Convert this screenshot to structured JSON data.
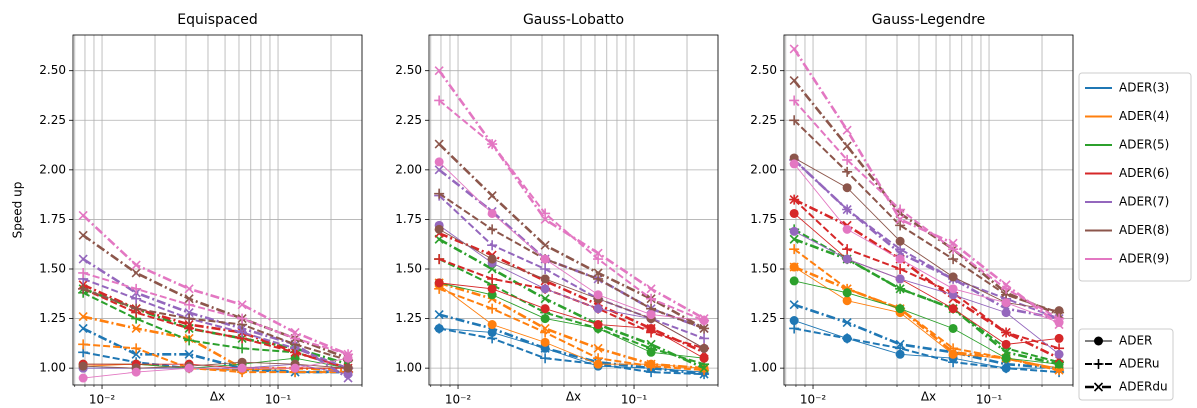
{
  "chart_data": [
    {
      "type": "line",
      "title": "Equispaced",
      "xlabel": "Δx",
      "ylabel": "Speed up",
      "log_x": true,
      "grid": true,
      "x": [
        0.0078125,
        0.015625,
        0.03125,
        0.0625,
        0.125,
        0.25
      ],
      "xlim": [
        0.00684,
        0.3
      ],
      "ylim": [
        0.915,
        2.68
      ],
      "xticks": [
        {
          "value": 0.01,
          "label": "10⁻²"
        },
        {
          "value": 0.1,
          "label": "10⁻¹"
        }
      ],
      "xminorticks": [
        0.007,
        0.008,
        0.009,
        0.02,
        0.03,
        0.04,
        0.05,
        0.06,
        0.07,
        0.08,
        0.09,
        0.2,
        0.3
      ],
      "yticks": [
        {
          "value": 1,
          "label": "1.00"
        },
        1.25,
        {
          "value": 1.5,
          "label": "1.50"
        },
        1.75,
        {
          "value": 2,
          "label": "2.00"
        },
        2.25,
        {
          "value": 2.5,
          "label": "2.50"
        }
      ],
      "series": [
        {
          "name": "ADER(3)",
          "style": "ADER",
          "values": [
            1.0,
            1.0,
            1.0,
            1.0,
            1.0,
            1.0
          ]
        },
        {
          "name": "ADER(3)",
          "style": "ADERu",
          "values": [
            1.08,
            1.03,
            1.0,
            0.99,
            0.98,
            0.98
          ]
        },
        {
          "name": "ADER(3)",
          "style": "ADERdu",
          "values": [
            1.2,
            1.07,
            1.07,
            1.0,
            0.98,
            0.98
          ]
        },
        {
          "name": "ADER(4)",
          "style": "ADER",
          "values": [
            1.01,
            1.02,
            1.0,
            0.99,
            1.0,
            1.0
          ]
        },
        {
          "name": "ADER(4)",
          "style": "ADERu",
          "values": [
            1.12,
            1.1,
            1.0,
            0.98,
            0.98,
            0.98
          ]
        },
        {
          "name": "ADER(4)",
          "style": "ADERdu",
          "values": [
            1.26,
            1.2,
            1.15,
            1.0,
            1.0,
            0.99
          ]
        },
        {
          "name": "ADER(5)",
          "style": "ADER",
          "values": [
            1.02,
            1.02,
            1.0,
            1.02,
            1.05,
            1.0
          ]
        },
        {
          "name": "ADER(5)",
          "style": "ADERu",
          "values": [
            1.38,
            1.25,
            1.14,
            1.1,
            1.08,
            1.0
          ]
        },
        {
          "name": "ADER(5)",
          "style": "ADERdu",
          "values": [
            1.4,
            1.3,
            1.2,
            1.15,
            1.1,
            1.02
          ]
        },
        {
          "name": "ADER(6)",
          "style": "ADER",
          "values": [
            1.02,
            1.02,
            1.02,
            1.0,
            1.0,
            1.0
          ]
        },
        {
          "name": "ADER(6)",
          "style": "ADERu",
          "values": [
            1.4,
            1.28,
            1.2,
            1.15,
            1.08,
            1.0
          ]
        },
        {
          "name": "ADER(6)",
          "style": "ADERdu",
          "values": [
            1.42,
            1.3,
            1.22,
            1.18,
            1.08,
            1.0
          ]
        },
        {
          "name": "ADER(7)",
          "style": "ADER",
          "values": [
            1.0,
            1.0,
            1.0,
            1.0,
            1.02,
            0.97
          ]
        },
        {
          "name": "ADER(7)",
          "style": "ADERu",
          "values": [
            1.45,
            1.35,
            1.25,
            1.18,
            1.1,
            1.0
          ]
        },
        {
          "name": "ADER(7)",
          "style": "ADERdu",
          "values": [
            1.55,
            1.38,
            1.28,
            1.2,
            1.12,
            0.95
          ]
        },
        {
          "name": "ADER(8)",
          "style": "ADER",
          "values": [
            1.01,
            1.0,
            1.01,
            1.03,
            1.02,
            1.0
          ]
        },
        {
          "name": "ADER(8)",
          "style": "ADERu",
          "values": [
            1.4,
            1.3,
            1.25,
            1.22,
            1.12,
            1.04
          ]
        },
        {
          "name": "ADER(8)",
          "style": "ADERdu",
          "values": [
            1.67,
            1.48,
            1.35,
            1.25,
            1.15,
            1.05
          ]
        },
        {
          "name": "ADER(9)",
          "style": "ADER",
          "values": [
            0.95,
            0.98,
            1.0,
            1.0,
            1.0,
            1.05
          ]
        },
        {
          "name": "ADER(9)",
          "style": "ADERu",
          "values": [
            1.48,
            1.4,
            1.32,
            1.25,
            1.15,
            1.07
          ]
        },
        {
          "name": "ADER(9)",
          "style": "ADERdu",
          "values": [
            1.77,
            1.52,
            1.4,
            1.32,
            1.18,
            1.07
          ]
        }
      ]
    },
    {
      "type": "line",
      "title": "Gauss-Lobatto",
      "xlabel": "Δx",
      "log_x": true,
      "grid": true,
      "x": [
        0.0078125,
        0.015625,
        0.03125,
        0.0625,
        0.125,
        0.25
      ],
      "xlim": [
        0.00684,
        0.3
      ],
      "ylim": [
        0.915,
        2.68
      ],
      "xticks": [
        {
          "value": 0.01,
          "label": "10⁻²"
        },
        {
          "value": 0.1,
          "label": "10⁻¹"
        }
      ],
      "xminorticks": [
        0.007,
        0.008,
        0.009,
        0.02,
        0.03,
        0.04,
        0.05,
        0.06,
        0.07,
        0.08,
        0.09,
        0.2,
        0.3
      ],
      "yticks": [
        {
          "value": 1,
          "label": "1.00"
        },
        1.25,
        {
          "value": 1.5,
          "label": "1.50"
        },
        1.75,
        {
          "value": 2,
          "label": "2.00"
        },
        2.25,
        {
          "value": 2.5,
          "label": "2.50"
        }
      ],
      "series": [
        {
          "name": "ADER(3)",
          "style": "ADER",
          "values": [
            1.2,
            1.18,
            1.1,
            1.01,
            1.0,
            0.98
          ]
        },
        {
          "name": "ADER(3)",
          "style": "ADERu",
          "values": [
            1.2,
            1.15,
            1.05,
            1.02,
            0.98,
            0.97
          ]
        },
        {
          "name": "ADER(3)",
          "style": "ADERdu",
          "values": [
            1.27,
            1.2,
            1.1,
            1.03,
            1.0,
            0.97
          ]
        },
        {
          "name": "ADER(4)",
          "style": "ADER",
          "values": [
            1.42,
            1.22,
            1.13,
            1.02,
            1.02,
            1.0
          ]
        },
        {
          "name": "ADER(4)",
          "style": "ADERu",
          "values": [
            1.4,
            1.3,
            1.18,
            1.05,
            1.01,
            0.99
          ]
        },
        {
          "name": "ADER(4)",
          "style": "ADERdu",
          "values": [
            1.43,
            1.35,
            1.2,
            1.1,
            1.02,
            1.0
          ]
        },
        {
          "name": "ADER(5)",
          "style": "ADER",
          "values": [
            1.43,
            1.37,
            1.25,
            1.2,
            1.08,
            1.05
          ]
        },
        {
          "name": "ADER(5)",
          "style": "ADERu",
          "values": [
            1.55,
            1.42,
            1.28,
            1.2,
            1.1,
            1.02
          ]
        },
        {
          "name": "ADER(5)",
          "style": "ADERdu",
          "values": [
            1.65,
            1.5,
            1.35,
            1.22,
            1.12,
            1.0
          ]
        },
        {
          "name": "ADER(6)",
          "style": "ADER",
          "values": [
            1.43,
            1.4,
            1.3,
            1.22,
            1.2,
            1.05
          ]
        },
        {
          "name": "ADER(6)",
          "style": "ADERu",
          "values": [
            1.55,
            1.45,
            1.4,
            1.3,
            1.18,
            1.1
          ]
        },
        {
          "name": "ADER(6)",
          "style": "ADERdu",
          "values": [
            1.68,
            1.57,
            1.44,
            1.32,
            1.2,
            1.08
          ]
        },
        {
          "name": "ADER(7)",
          "style": "ADER",
          "values": [
            1.72,
            1.53,
            1.4,
            1.3,
            1.25,
            1.1
          ]
        },
        {
          "name": "ADER(7)",
          "style": "ADERu",
          "values": [
            1.87,
            1.62,
            1.5,
            1.35,
            1.25,
            1.15
          ]
        },
        {
          "name": "ADER(7)",
          "style": "ADERdu",
          "values": [
            2.0,
            1.79,
            1.55,
            1.45,
            1.3,
            1.2
          ]
        },
        {
          "name": "ADER(8)",
          "style": "ADER",
          "values": [
            1.7,
            1.55,
            1.45,
            1.35,
            1.25,
            1.1
          ]
        },
        {
          "name": "ADER(8)",
          "style": "ADERu",
          "values": [
            1.88,
            1.7,
            1.55,
            1.45,
            1.3,
            1.2
          ]
        },
        {
          "name": "ADER(8)",
          "style": "ADERdu",
          "values": [
            2.13,
            1.87,
            1.62,
            1.48,
            1.35,
            1.2
          ]
        },
        {
          "name": "ADER(9)",
          "style": "ADER",
          "values": [
            2.04,
            1.78,
            1.55,
            1.37,
            1.27,
            1.24
          ]
        },
        {
          "name": "ADER(9)",
          "style": "ADERu",
          "values": [
            2.35,
            2.13,
            1.78,
            1.55,
            1.35,
            1.24
          ]
        },
        {
          "name": "ADER(9)",
          "style": "ADERdu",
          "values": [
            2.5,
            2.13,
            1.75,
            1.58,
            1.4,
            1.25
          ]
        }
      ]
    },
    {
      "type": "line",
      "title": "Gauss-Legendre",
      "xlabel": "Δx",
      "log_x": true,
      "grid": true,
      "x": [
        0.0078125,
        0.015625,
        0.03125,
        0.0625,
        0.125,
        0.25
      ],
      "xlim": [
        0.00684,
        0.3
      ],
      "ylim": [
        0.915,
        2.68
      ],
      "xticks": [
        {
          "value": 0.01,
          "label": "10⁻²"
        },
        {
          "value": 0.1,
          "label": "10⁻¹"
        }
      ],
      "xminorticks": [
        0.007,
        0.008,
        0.009,
        0.02,
        0.03,
        0.04,
        0.05,
        0.06,
        0.07,
        0.08,
        0.09,
        0.2,
        0.3
      ],
      "yticks": [
        {
          "value": 1,
          "label": "1.00"
        },
        1.25,
        {
          "value": 1.5,
          "label": "1.50"
        },
        1.75,
        {
          "value": 2,
          "label": "2.00"
        },
        2.25,
        {
          "value": 2.5,
          "label": "2.50"
        }
      ],
      "series": [
        {
          "name": "ADER(3)",
          "style": "ADER",
          "values": [
            1.24,
            1.15,
            1.07,
            1.05,
            1.0,
            1.0
          ]
        },
        {
          "name": "ADER(3)",
          "style": "ADERu",
          "values": [
            1.2,
            1.15,
            1.1,
            1.03,
            1.0,
            0.98
          ]
        },
        {
          "name": "ADER(3)",
          "style": "ADERdu",
          "values": [
            1.32,
            1.23,
            1.12,
            1.08,
            1.02,
            1.0
          ]
        },
        {
          "name": "ADER(4)",
          "style": "ADER",
          "values": [
            1.51,
            1.34,
            1.28,
            1.07,
            1.05,
            1.0
          ]
        },
        {
          "name": "ADER(4)",
          "style": "ADERu",
          "values": [
            1.6,
            1.4,
            1.3,
            1.1,
            1.05,
            0.99
          ]
        },
        {
          "name": "ADER(4)",
          "style": "ADERdu",
          "values": [
            1.51,
            1.4,
            1.3,
            1.08,
            1.05,
            0.99
          ]
        },
        {
          "name": "ADER(5)",
          "style": "ADER",
          "values": [
            1.44,
            1.38,
            1.3,
            1.2,
            1.05,
            1.02
          ]
        },
        {
          "name": "ADER(5)",
          "style": "ADERu",
          "values": [
            1.7,
            1.55,
            1.4,
            1.3,
            1.1,
            1.03
          ]
        },
        {
          "name": "ADER(5)",
          "style": "ADERdu",
          "values": [
            1.65,
            1.55,
            1.4,
            1.3,
            1.08,
            1.02
          ]
        },
        {
          "name": "ADER(6)",
          "style": "ADER",
          "values": [
            1.78,
            1.55,
            1.45,
            1.3,
            1.12,
            1.15
          ]
        },
        {
          "name": "ADER(6)",
          "style": "ADERu",
          "values": [
            1.85,
            1.6,
            1.5,
            1.38,
            1.18,
            1.1
          ]
        },
        {
          "name": "ADER(6)",
          "style": "ADERdu",
          "values": [
            1.85,
            1.72,
            1.55,
            1.35,
            1.18,
            1.05
          ]
        },
        {
          "name": "ADER(7)",
          "style": "ADER",
          "values": [
            1.69,
            1.55,
            1.45,
            1.37,
            1.28,
            1.07
          ]
        },
        {
          "name": "ADER(7)",
          "style": "ADERu",
          "values": [
            2.05,
            1.8,
            1.6,
            1.45,
            1.35,
            1.25
          ]
        },
        {
          "name": "ADER(7)",
          "style": "ADERdu",
          "values": [
            2.05,
            1.8,
            1.58,
            1.45,
            1.3,
            1.25
          ]
        },
        {
          "name": "ADER(8)",
          "style": "ADER",
          "values": [
            2.06,
            1.91,
            1.64,
            1.46,
            1.33,
            1.29
          ]
        },
        {
          "name": "ADER(8)",
          "style": "ADERu",
          "values": [
            2.25,
            1.99,
            1.72,
            1.55,
            1.37,
            1.28
          ]
        },
        {
          "name": "ADER(8)",
          "style": "ADERdu",
          "values": [
            2.45,
            2.12,
            1.78,
            1.6,
            1.38,
            1.27
          ]
        },
        {
          "name": "ADER(9)",
          "style": "ADER",
          "values": [
            2.03,
            1.7,
            1.55,
            1.4,
            1.33,
            1.23
          ]
        },
        {
          "name": "ADER(9)",
          "style": "ADERu",
          "values": [
            2.35,
            2.05,
            1.8,
            1.6,
            1.4,
            1.25
          ]
        },
        {
          "name": "ADER(9)",
          "style": "ADERdu",
          "values": [
            2.61,
            2.2,
            1.75,
            1.63,
            1.42,
            1.22
          ]
        }
      ]
    }
  ],
  "legend": {
    "colors": [
      {
        "name": "ADER(3)",
        "color": "#1f77b4"
      },
      {
        "name": "ADER(4)",
        "color": "#ff7f0e"
      },
      {
        "name": "ADER(5)",
        "color": "#2ca02c"
      },
      {
        "name": "ADER(6)",
        "color": "#d62728"
      },
      {
        "name": "ADER(7)",
        "color": "#9467bd"
      },
      {
        "name": "ADER(8)",
        "color": "#8c564b"
      },
      {
        "name": "ADER(9)",
        "color": "#e377c2"
      }
    ],
    "styles": [
      {
        "name": "ADER",
        "marker": "o",
        "linestyle": "solid"
      },
      {
        "name": "ADERu",
        "marker": "+",
        "linestyle": "dashed"
      },
      {
        "name": "ADERdu",
        "marker": "x",
        "linestyle": "dashdot"
      }
    ]
  }
}
